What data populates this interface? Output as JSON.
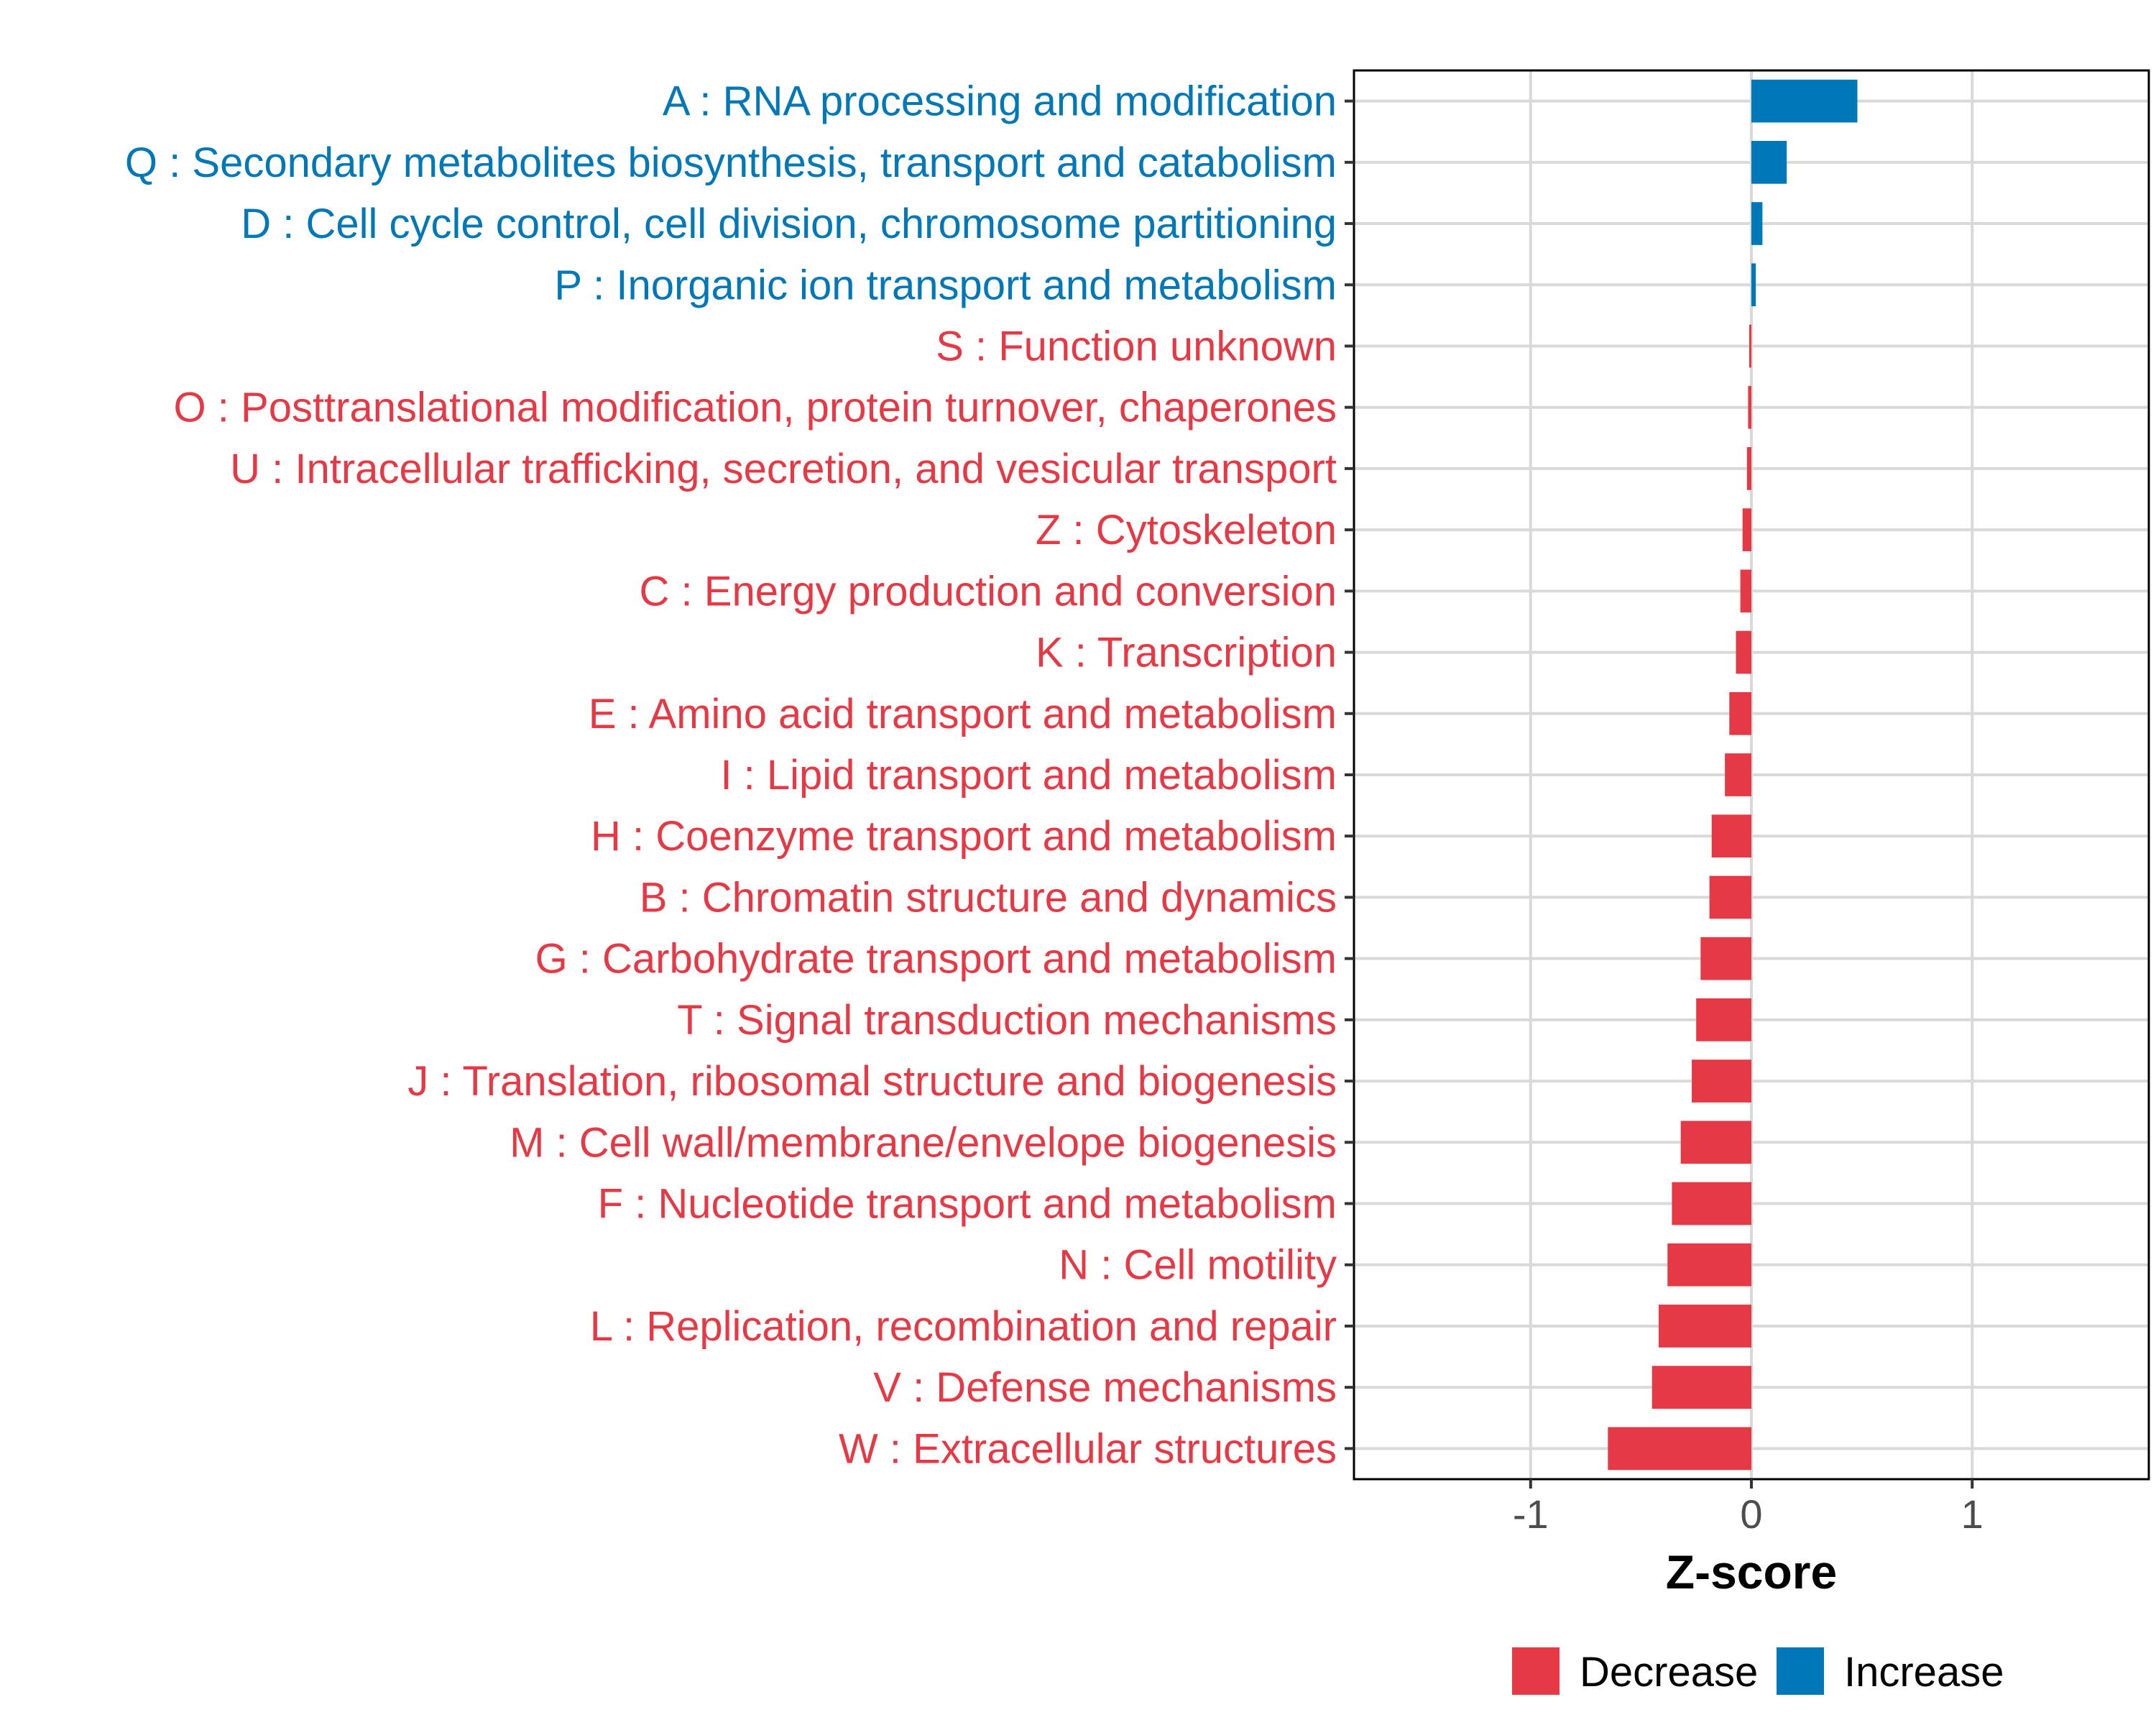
{
  "chart_data": {
    "type": "bar",
    "orientation": "horizontal",
    "title": "",
    "xlabel": "Z-score",
    "ylabel": "",
    "xlim": [
      -1.8,
      1.8
    ],
    "xticks": [
      -1,
      0,
      1
    ],
    "xtick_labels": [
      "-1",
      "0",
      "1"
    ],
    "grid": true,
    "legend_position": "bottom",
    "colors": {
      "Decrease": "#e63946",
      "Increase": "#0077b6"
    },
    "legend": [
      {
        "name": "Decrease",
        "color": "#e63946"
      },
      {
        "name": "Increase",
        "color": "#0077b6"
      }
    ],
    "categories": [
      "A : RNA processing and modification",
      "Q : Secondary metabolites biosynthesis, transport and catabolism",
      "D : Cell cycle control, cell division, chromosome partitioning",
      "P : Inorganic ion transport and metabolism",
      "S : Function unknown",
      "O : Posttranslational modification, protein turnover, chaperones",
      "U : Intracellular trafficking, secretion, and vesicular transport",
      "Z : Cytoskeleton",
      "C : Energy production and conversion",
      "K : Transcription",
      "E : Amino acid transport and metabolism",
      "I : Lipid transport and metabolism",
      "H : Coenzyme transport and metabolism",
      "B : Chromatin structure and dynamics",
      "G : Carbohydrate transport and metabolism",
      "T : Signal transduction mechanisms",
      "J : Translation, ribosomal structure and biogenesis",
      "M : Cell wall/membrane/envelope biogenesis",
      "F : Nucleotide transport and metabolism",
      "N : Cell motility",
      "L : Replication, recombination and repair",
      "V : Defense mechanisms",
      "W : Extracellular structures"
    ],
    "values": [
      0.48,
      0.16,
      0.05,
      0.02,
      -0.01,
      -0.015,
      -0.02,
      -0.04,
      -0.05,
      -0.07,
      -0.1,
      -0.12,
      -0.18,
      -0.19,
      -0.23,
      -0.25,
      -0.27,
      -0.32,
      -0.36,
      -0.38,
      -0.42,
      -0.45,
      -0.65
    ],
    "groups": [
      "Increase",
      "Increase",
      "Increase",
      "Increase",
      "Decrease",
      "Decrease",
      "Decrease",
      "Decrease",
      "Decrease",
      "Decrease",
      "Decrease",
      "Decrease",
      "Decrease",
      "Decrease",
      "Decrease",
      "Decrease",
      "Decrease",
      "Decrease",
      "Decrease",
      "Decrease",
      "Decrease",
      "Decrease",
      "Decrease"
    ]
  }
}
